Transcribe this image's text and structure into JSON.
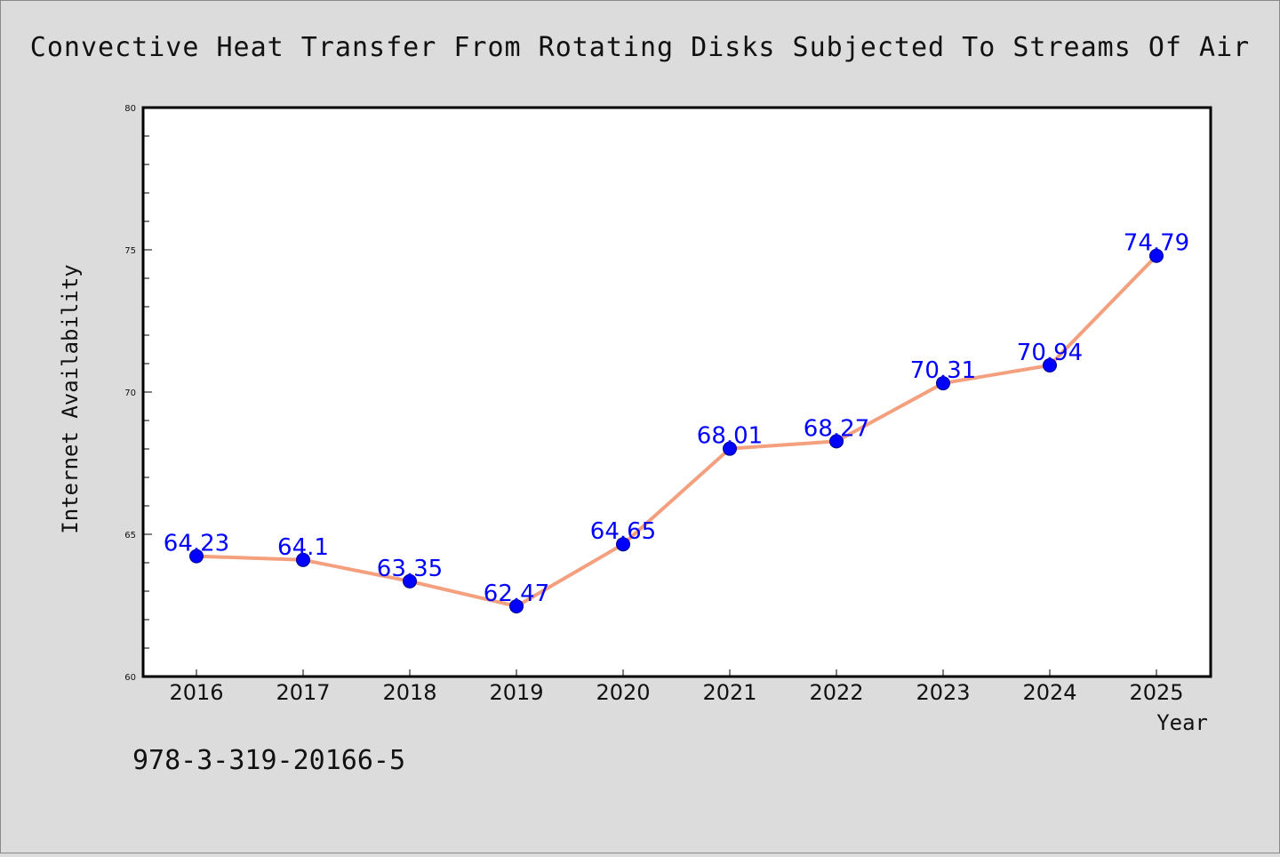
{
  "chart_data": {
    "type": "line",
    "title": "Convective Heat Transfer From Rotating Disks Subjected To Streams Of Air",
    "xlabel": "Year",
    "ylabel": "Internet Availability",
    "categories": [
      "2016",
      "2017",
      "2018",
      "2019",
      "2020",
      "2021",
      "2022",
      "2023",
      "2024",
      "2025"
    ],
    "series": [
      {
        "values": [
          64.23,
          64.1,
          63.35,
          62.47,
          64.65,
          68.01,
          68.27,
          70.31,
          70.94,
          74.79
        ],
        "labels": [
          "64.23",
          "64.1",
          "63.35",
          "62.47",
          "64.65",
          "68.01",
          "68.27",
          "70.31",
          "70.94",
          "74.79"
        ]
      }
    ],
    "ylim": [
      60,
      80
    ],
    "yticks": [
      "60",
      "65",
      "70",
      "75",
      "80"
    ],
    "grid": false,
    "legend": "none",
    "colors": {
      "line": "#f4a07e",
      "marker": "#0000ff",
      "marker_edge": "#00008b",
      "data_label": "#0000ff",
      "plot_background": "#ffffff",
      "figure_background": "#dcdcdc"
    }
  },
  "footer": {
    "code": "978-3-319-20166-5"
  }
}
